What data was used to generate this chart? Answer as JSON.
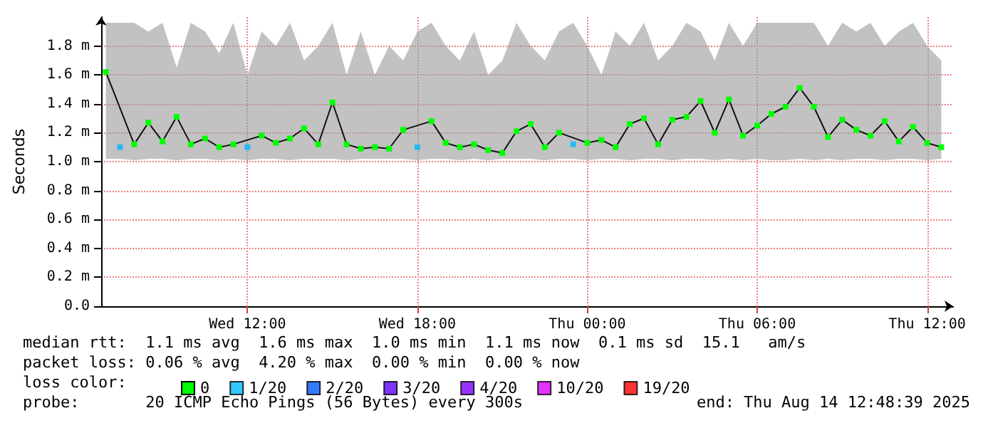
{
  "chart_data": {
    "type": "line",
    "ylabel": "Seconds",
    "legend_title": "loss color:",
    "legend": "bottom",
    "grid": true,
    "marker": "square",
    "xlim": [
      "2025-08-13T06:50",
      "2025-08-14T12:55"
    ],
    "xticks": [
      {
        "value": "2025-08-13T12:00",
        "label": "Wed 12:00"
      },
      {
        "value": "2025-08-13T18:00",
        "label": "Wed 18:00"
      },
      {
        "value": "2025-08-14T00:00",
        "label": "Thu 00:00"
      },
      {
        "value": "2025-08-14T06:00",
        "label": "Thu 06:00"
      },
      {
        "value": "2025-08-14T12:00",
        "label": "Thu 12:00"
      }
    ],
    "ylim": [
      0,
      2
    ],
    "yticks": [
      {
        "value": 0,
        "label": "0.0"
      },
      {
        "value": 0.2,
        "label": "0.2 m"
      },
      {
        "value": 0.4,
        "label": "0.4 m"
      },
      {
        "value": 0.6,
        "label": "0.6 m"
      },
      {
        "value": 0.8,
        "label": "0.8 m"
      },
      {
        "value": 1,
        "label": "1.0 m"
      },
      {
        "value": 1.2,
        "label": "1.2 m"
      },
      {
        "value": 1.4,
        "label": "1.4 m"
      },
      {
        "value": 1.6,
        "label": "1.6 m"
      },
      {
        "value": 1.8,
        "label": "1.8 m"
      }
    ],
    "x": [
      "2025-08-13T07:00",
      "2025-08-13T07:30",
      "2025-08-13T08:00",
      "2025-08-13T08:30",
      "2025-08-13T09:00",
      "2025-08-13T09:30",
      "2025-08-13T10:00",
      "2025-08-13T10:30",
      "2025-08-13T11:00",
      "2025-08-13T11:30",
      "2025-08-13T12:00",
      "2025-08-13T12:30",
      "2025-08-13T13:00",
      "2025-08-13T13:30",
      "2025-08-13T14:00",
      "2025-08-13T14:30",
      "2025-08-13T15:00",
      "2025-08-13T15:30",
      "2025-08-13T16:00",
      "2025-08-13T16:30",
      "2025-08-13T17:00",
      "2025-08-13T17:30",
      "2025-08-13T18:00",
      "2025-08-13T18:30",
      "2025-08-13T19:00",
      "2025-08-13T19:30",
      "2025-08-13T20:00",
      "2025-08-13T20:30",
      "2025-08-13T21:00",
      "2025-08-13T21:30",
      "2025-08-13T22:00",
      "2025-08-13T22:30",
      "2025-08-13T23:00",
      "2025-08-13T23:30",
      "2025-08-14T00:00",
      "2025-08-14T00:30",
      "2025-08-14T01:00",
      "2025-08-14T01:30",
      "2025-08-14T02:00",
      "2025-08-14T02:30",
      "2025-08-14T03:00",
      "2025-08-14T03:30",
      "2025-08-14T04:00",
      "2025-08-14T04:30",
      "2025-08-14T05:00",
      "2025-08-14T05:30",
      "2025-08-14T06:00",
      "2025-08-14T06:30",
      "2025-08-14T07:00",
      "2025-08-14T07:30",
      "2025-08-14T08:00",
      "2025-08-14T08:30",
      "2025-08-14T09:00",
      "2025-08-14T09:30",
      "2025-08-14T10:00",
      "2025-08-14T10:30",
      "2025-08-14T11:00",
      "2025-08-14T11:30",
      "2025-08-14T12:00",
      "2025-08-14T12:30"
    ],
    "series": [
      {
        "name": "0",
        "color": "#00ff00",
        "values": [
          1.62,
          null,
          1.12,
          1.27,
          1.14,
          1.31,
          1.12,
          1.16,
          1.1,
          1.12,
          null,
          1.18,
          1.13,
          1.16,
          1.23,
          1.12,
          1.41,
          1.12,
          1.09,
          1.1,
          1.09,
          1.22,
          null,
          1.28,
          1.13,
          1.1,
          1.12,
          1.08,
          1.06,
          1.21,
          1.26,
          1.1,
          1.2,
          null,
          1.13,
          1.15,
          1.1,
          1.26,
          1.3,
          1.12,
          1.29,
          1.31,
          1.42,
          1.2,
          1.43,
          1.18,
          1.25,
          1.33,
          1.38,
          1.51,
          1.38,
          1.17,
          1.29,
          1.22,
          1.18,
          1.28,
          1.14,
          1.24,
          1.13,
          1.1
        ],
        "lower": [
          1.02,
          1.02,
          1.01,
          1.02,
          1.02,
          1.01,
          1.02,
          1.02,
          1.01,
          1.02,
          1.01,
          1.02,
          1.02,
          1.01,
          1.02,
          1.02,
          1.02,
          1.01,
          1.02,
          1.02,
          1.02,
          1.02,
          1.01,
          1.02,
          1.02,
          1.01,
          1.02,
          1.01,
          1.02,
          1.02,
          1.02,
          1.01,
          1.02,
          1.02,
          1.01,
          1.02,
          1.02,
          1.01,
          1.02,
          1.02,
          1.01,
          1.02,
          1.02,
          1.01,
          1.02,
          1.01,
          1.02,
          1.01,
          1.01,
          1.02,
          1.01,
          1.02,
          1.01,
          1.02,
          1.02,
          1.01,
          1.02,
          1.02,
          1.01,
          1.02
        ],
        "upper": [
          1.96,
          1.96,
          1.96,
          1.9,
          1.96,
          1.65,
          1.96,
          1.9,
          1.75,
          1.96,
          1.6,
          1.9,
          1.8,
          1.96,
          1.7,
          1.8,
          1.96,
          1.6,
          1.9,
          1.6,
          1.8,
          1.7,
          1.9,
          1.96,
          1.8,
          1.7,
          1.9,
          1.6,
          1.7,
          1.96,
          1.8,
          1.7,
          1.9,
          1.96,
          1.8,
          1.6,
          1.9,
          1.8,
          1.96,
          1.7,
          1.8,
          1.96,
          1.9,
          1.7,
          1.96,
          1.8,
          1.96,
          1.96,
          1.96,
          1.96,
          1.96,
          1.8,
          1.96,
          1.9,
          1.96,
          1.8,
          1.9,
          1.96,
          1.8,
          1.7
        ]
      },
      {
        "name": "1/20",
        "color": "#00b8ff",
        "type": "scatter",
        "values": [
          null,
          1.1,
          null,
          null,
          null,
          null,
          null,
          null,
          null,
          null,
          1.1,
          null,
          null,
          null,
          null,
          null,
          null,
          null,
          null,
          null,
          null,
          null,
          1.1,
          null,
          null,
          null,
          null,
          null,
          null,
          null,
          null,
          null,
          null,
          1.12,
          null,
          null,
          null,
          null,
          null,
          null,
          null,
          null,
          null,
          null,
          null,
          null,
          null,
          null,
          null,
          null,
          null,
          null,
          null,
          null,
          null,
          null,
          null,
          null,
          null,
          null
        ]
      },
      {
        "name": "2/20",
        "color": "#0059ff",
        "type": "scatter",
        "values": [
          null,
          null,
          null,
          null,
          null,
          null,
          null,
          null,
          null,
          null,
          null,
          null,
          null,
          null,
          null,
          null,
          null,
          null,
          null,
          null,
          null,
          null,
          null,
          null,
          null,
          null,
          null,
          null,
          null,
          null,
          null,
          null,
          null,
          null,
          null,
          null,
          null,
          null,
          null,
          null,
          null,
          null,
          null,
          null,
          null,
          null,
          null,
          null,
          null,
          null,
          null,
          null,
          null,
          null,
          null,
          null,
          null,
          null,
          null,
          null
        ]
      },
      {
        "name": "3/20",
        "color": "#5e00ff",
        "type": "scatter",
        "values": [
          null,
          null,
          null,
          null,
          null,
          null,
          null,
          null,
          null,
          null,
          null,
          null,
          null,
          null,
          null,
          null,
          null,
          null,
          null,
          null,
          null,
          null,
          null,
          null,
          null,
          null,
          null,
          null,
          null,
          null,
          null,
          null,
          null,
          null,
          null,
          null,
          null,
          null,
          null,
          null,
          null,
          null,
          null,
          null,
          null,
          null,
          null,
          null,
          null,
          null,
          null,
          null,
          null,
          null,
          null,
          null,
          null,
          null,
          null,
          null
        ]
      },
      {
        "name": "4/20",
        "color": "#7e00ff",
        "type": "scatter",
        "values": [
          null,
          null,
          null,
          null,
          null,
          null,
          null,
          null,
          null,
          null,
          null,
          null,
          null,
          null,
          null,
          null,
          null,
          null,
          null,
          null,
          null,
          null,
          null,
          null,
          null,
          null,
          null,
          null,
          null,
          null,
          null,
          null,
          null,
          null,
          null,
          null,
          null,
          null,
          null,
          null,
          null,
          null,
          null,
          null,
          null,
          null,
          null,
          null,
          null,
          null,
          null,
          null,
          null,
          null,
          null,
          null,
          null,
          null,
          null,
          null
        ]
      },
      {
        "name": "10/20",
        "color": "#dd00ff",
        "type": "scatter",
        "values": [
          null,
          null,
          null,
          null,
          null,
          null,
          null,
          null,
          null,
          null,
          null,
          null,
          null,
          null,
          null,
          null,
          null,
          null,
          null,
          null,
          null,
          null,
          null,
          null,
          null,
          null,
          null,
          null,
          null,
          null,
          null,
          null,
          null,
          null,
          null,
          null,
          null,
          null,
          null,
          null,
          null,
          null,
          null,
          null,
          null,
          null,
          null,
          null,
          null,
          null,
          null,
          null,
          null,
          null,
          null,
          null,
          null,
          null,
          null,
          null
        ]
      },
      {
        "name": "19/20",
        "color": "#ff0000",
        "type": "scatter",
        "values": [
          null,
          null,
          null,
          null,
          null,
          null,
          null,
          null,
          null,
          null,
          null,
          null,
          null,
          null,
          null,
          null,
          null,
          null,
          null,
          null,
          null,
          null,
          null,
          null,
          null,
          null,
          null,
          null,
          null,
          null,
          null,
          null,
          null,
          null,
          null,
          null,
          null,
          null,
          null,
          null,
          null,
          null,
          null,
          null,
          null,
          null,
          null,
          null,
          null,
          null,
          null,
          null,
          null,
          null,
          null,
          null,
          null,
          null,
          null,
          null
        ]
      }
    ],
    "annotations": [
      "median rtt:  1.1 ms avg  1.6 ms max  1.0 ms min  1.1 ms now  0.1 ms sd  15.1   am/s",
      "packet loss: 0.06 % avg  4.20 % max  0.00 % min  0.00 % now",
      "probe:       20 ICMP Echo Pings (56 Bytes) every 300s",
      "end: Thu Aug 14 12:48:39 2025"
    ]
  }
}
